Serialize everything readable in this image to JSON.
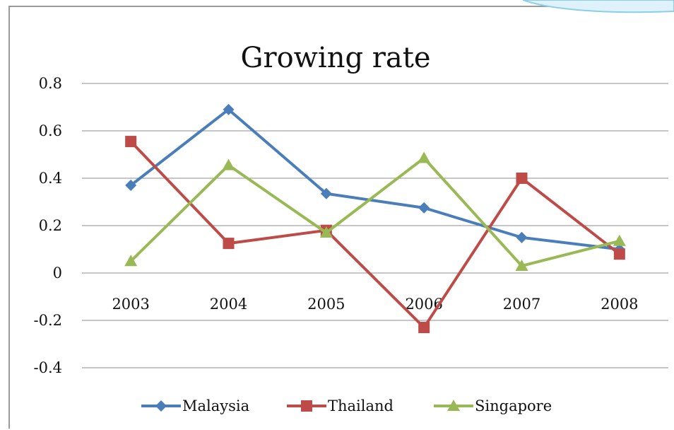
{
  "chart_data": {
    "type": "line",
    "title": "Growing rate",
    "categories": [
      "2003",
      "2004",
      "2005",
      "2006",
      "2007",
      "2008"
    ],
    "ylim": [
      -0.4,
      0.8
    ],
    "yticks": [
      "-0.4",
      "-0.2",
      "0",
      "0.2",
      "0.4",
      "0.6",
      "0.8"
    ],
    "grid": true,
    "legend_position": "bottom",
    "series": [
      {
        "name": "Malaysia",
        "color": "#4a7ebb",
        "marker": "diamond",
        "values": [
          0.37,
          0.69,
          0.335,
          0.275,
          0.15,
          0.1
        ]
      },
      {
        "name": "Thailand",
        "color": "#be4b48",
        "marker": "square",
        "values": [
          0.555,
          0.125,
          0.18,
          -0.23,
          0.4,
          0.08
        ]
      },
      {
        "name": "Singapore",
        "color": "#98b954",
        "marker": "triangle",
        "values": [
          0.05,
          0.455,
          0.17,
          0.485,
          0.03,
          0.135
        ]
      }
    ]
  }
}
